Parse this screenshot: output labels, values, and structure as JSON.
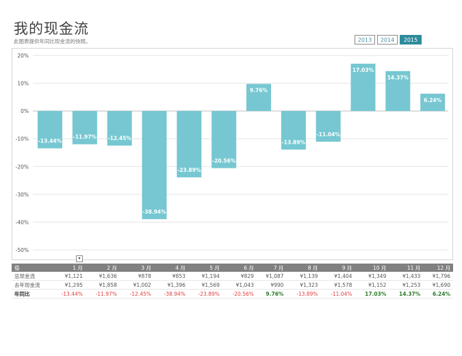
{
  "header": {
    "title": "我的现金流",
    "subtitle": "此图表提供年同比现金流的快照。"
  },
  "year_buttons": [
    {
      "label": "2013",
      "active": false
    },
    {
      "label": "2014",
      "active": false
    },
    {
      "label": "2015",
      "active": true
    }
  ],
  "colors": {
    "bar": "#76c7d1",
    "accent": "#2f8b9c",
    "negative": "#e04040",
    "positive": "#2b7a2b",
    "table_header": "#808080"
  },
  "chart_data": {
    "type": "bar",
    "categories": [
      "1月",
      "2月",
      "3月",
      "4月",
      "5月",
      "6月",
      "7月",
      "8月",
      "9月",
      "10月",
      "11月",
      "12月"
    ],
    "values": [
      -13.44,
      -11.97,
      -12.45,
      -38.94,
      -23.89,
      -20.56,
      9.76,
      -13.89,
      -11.04,
      17.03,
      14.37,
      6.24
    ],
    "data_labels": [
      "-13.44%",
      "-11.97%",
      "-12.45%",
      "-38.94%",
      "-23.89%",
      "-20.56%",
      "9.76%",
      "-13.89%",
      "-11.04%",
      "17.03%",
      "14.37%",
      "6.24%"
    ],
    "y_ticks": [
      "20%",
      "10%",
      "0%",
      "-10%",
      "-20%",
      "-30%",
      "-40%",
      "-50%"
    ],
    "ylim": [
      -50,
      20
    ],
    "grid": true
  },
  "table": {
    "corner_label": "值",
    "months": [
      "1 月",
      "2 月",
      "3 月",
      "4 月",
      "5 月",
      "6 月",
      "7 月",
      "8 月",
      "9 月",
      "10 月",
      "11 月",
      "12 月"
    ],
    "rows": [
      {
        "label": "总现金流",
        "values": [
          "¥1,121",
          "¥1,636",
          "¥878",
          "¥853",
          "¥1,194",
          "¥829",
          "¥1,087",
          "¥1,139",
          "¥1,404",
          "¥1,349",
          "¥1,433",
          "¥1,796"
        ]
      },
      {
        "label": "去年现金流",
        "values": [
          "¥1,295",
          "¥1,858",
          "¥1,002",
          "¥1,396",
          "¥1,569",
          "¥1,043",
          "¥990",
          "¥1,323",
          "¥1,578",
          "¥1,152",
          "¥1,253",
          "¥1,690"
        ]
      },
      {
        "label": "年同比",
        "values": [
          "-13.44%",
          "-11.97%",
          "-12.45%",
          "-38.94%",
          "-23.89%",
          "-20.56%",
          "9.76%",
          "-13.89%",
          "-11.04%",
          "17.03%",
          "14.37%",
          "6.24%"
        ]
      }
    ],
    "filter_glyph": "▾"
  }
}
